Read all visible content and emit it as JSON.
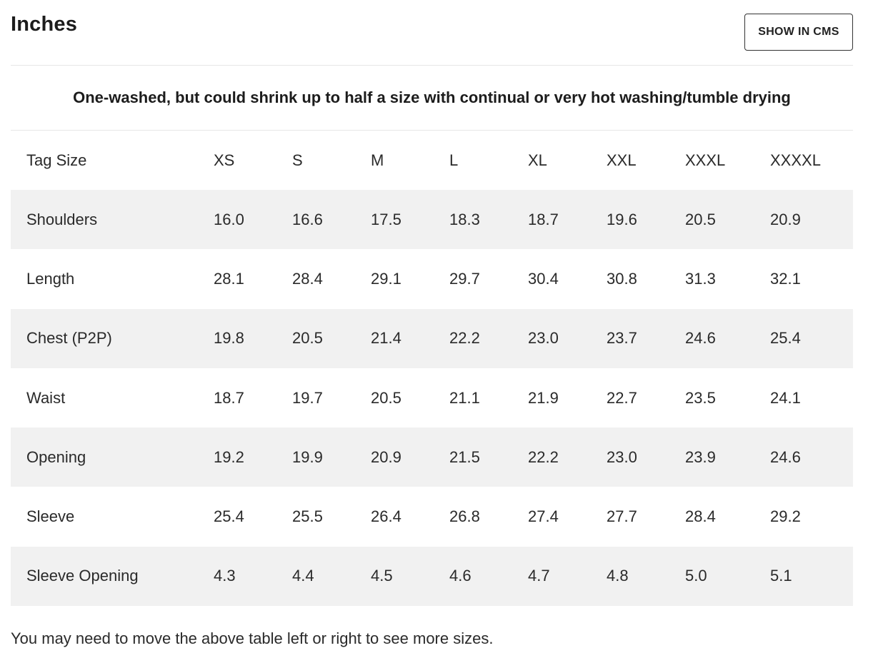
{
  "header": {
    "title": "Inches",
    "cms_button_label": "SHOW IN CMS"
  },
  "note": "One-washed, but could shrink up to half a size with continual or very hot washing/tumble drying",
  "table": {
    "columns": [
      "Tag Size",
      "XS",
      "S",
      "M",
      "L",
      "XL",
      "XXL",
      "XXXL",
      "XXXXL"
    ],
    "rows": [
      {
        "label": "Shoulders",
        "values": [
          "16.0",
          "16.6",
          "17.5",
          "18.3",
          "18.7",
          "19.6",
          "20.5",
          "20.9"
        ]
      },
      {
        "label": "Length",
        "values": [
          "28.1",
          "28.4",
          "29.1",
          "29.7",
          "30.4",
          "30.8",
          "31.3",
          "32.1"
        ]
      },
      {
        "label": "Chest (P2P)",
        "values": [
          "19.8",
          "20.5",
          "21.4",
          "22.2",
          "23.0",
          "23.7",
          "24.6",
          "25.4"
        ]
      },
      {
        "label": "Waist",
        "values": [
          "18.7",
          "19.7",
          "20.5",
          "21.1",
          "21.9",
          "22.7",
          "23.5",
          "24.1"
        ]
      },
      {
        "label": "Opening",
        "values": [
          "19.2",
          "19.9",
          "20.9",
          "21.5",
          "22.2",
          "23.0",
          "23.9",
          "24.6"
        ]
      },
      {
        "label": "Sleeve",
        "values": [
          "25.4",
          "25.5",
          "26.4",
          "26.8",
          "27.4",
          "27.7",
          "28.4",
          "29.2"
        ]
      },
      {
        "label": "Sleeve Opening",
        "values": [
          "4.3",
          "4.4",
          "4.5",
          "4.6",
          "4.7",
          "4.8",
          "5.0",
          "5.1"
        ]
      }
    ]
  },
  "footer_note": "You may need to move the above table left or right to see more sizes.",
  "colors": {
    "stripe": "#f1f1f1",
    "text": "#222222",
    "divider": "#e6e6e6"
  }
}
